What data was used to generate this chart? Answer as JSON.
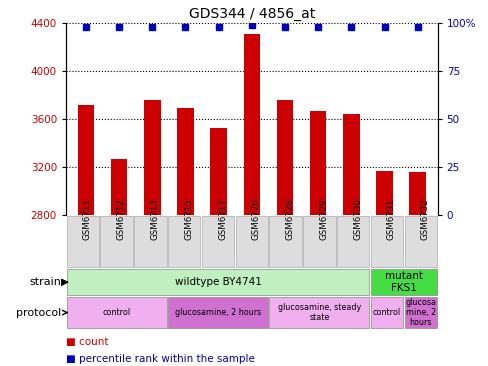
{
  "title": "GDS344 / 4856_at",
  "samples": [
    "GSM6711",
    "GSM6712",
    "GSM6713",
    "GSM6715",
    "GSM6717",
    "GSM6726",
    "GSM6728",
    "GSM6729",
    "GSM6730",
    "GSM6731",
    "GSM6732"
  ],
  "counts": [
    3720,
    3270,
    3760,
    3690,
    3530,
    4310,
    3760,
    3670,
    3640,
    3170,
    3160
  ],
  "percentiles": [
    98,
    98,
    98,
    98,
    98,
    99,
    98,
    98,
    98,
    98,
    98
  ],
  "ylim": [
    2800,
    4400
  ],
  "yticks": [
    2800,
    3200,
    3600,
    4000,
    4400
  ],
  "right_yticks": [
    0,
    25,
    50,
    75,
    100
  ],
  "right_ylim": [
    0,
    100
  ],
  "bar_color": "#cc0000",
  "dot_color": "#0000bb",
  "bar_width": 0.5,
  "strain_groups": [
    {
      "label": "wildtype BY4741",
      "start": 0,
      "end": 9,
      "color": "#c0f0c0"
    },
    {
      "label": "mutant\nFKS1",
      "start": 9,
      "end": 11,
      "color": "#44dd44"
    }
  ],
  "protocol_groups": [
    {
      "label": "control",
      "start": 0,
      "end": 3,
      "color": "#f0b0f0"
    },
    {
      "label": "glucosamine, 2 hours",
      "start": 3,
      "end": 6,
      "color": "#d070d0"
    },
    {
      "label": "glucosamine, steady\nstate",
      "start": 6,
      "end": 9,
      "color": "#f0b0f0"
    },
    {
      "label": "control",
      "start": 9,
      "end": 10,
      "color": "#f0b0f0"
    },
    {
      "label": "glucosa\nmine, 2\nhours",
      "start": 10,
      "end": 11,
      "color": "#d070d0"
    }
  ]
}
